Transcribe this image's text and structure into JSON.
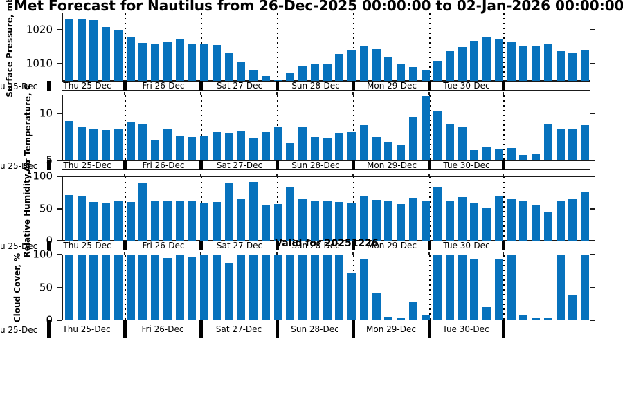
{
  "title": "Met Forecast for Nautilus from 26-Dec-2025 00:00:00 to 02-Jan-2026 00:00:00",
  "annotation": {
    "valid_label": "Valid for 20251226"
  },
  "axis": {
    "clipped_first_day_label": "u 25-Dec",
    "day_labels": [
      "Thu 25-Dec",
      "Fri 26-Dec",
      "Sat 27-Dec",
      "Sun 28-Dec",
      "Mon 29-Dec",
      "Tue 30-Dec"
    ]
  },
  "colors": {
    "bar": "#0772BD",
    "axis": "#1a1a1a",
    "background": "#FFFFFF",
    "text": "#000000"
  },
  "chart_data": [
    {
      "type": "bar",
      "ylabel": "Surface Pressure, mb",
      "yticks": [
        1010,
        1020
      ],
      "ylim": [
        1005,
        1025.2
      ],
      "grid": "vertical-dotted-at-day-boundaries",
      "day_labels": [
        "Thu 25-Dec",
        "Fri 26-Dec",
        "Sat 27-Dec",
        "Sun 28-Dec",
        "Mon 29-Dec",
        "Tue 30-Dec"
      ],
      "values": [
        1023.3,
        1023.4,
        1023.2,
        1021.2,
        1020.1,
        1018.2,
        1016.5,
        1016.0,
        1016.9,
        1017.7,
        1016.3,
        1016.1,
        1015.8,
        1013.3,
        1010.9,
        1008.4,
        1006.6,
        1005.7,
        1007.6,
        1009.5,
        1010.2,
        1010.4,
        1013.1,
        1014.2,
        1015.5,
        1014.5,
        1012.2,
        1010.4,
        1009.2,
        1008.5,
        1011.1,
        1014.0,
        1015.2,
        1017.0,
        1018.2,
        1017.4,
        1016.8,
        1015.7,
        1015.5,
        1016.1,
        1013.9,
        1013.3,
        1014.4
      ]
    },
    {
      "type": "bar",
      "ylabel": "Air Temperature, C",
      "yticks": [
        5,
        10
      ],
      "ylim": [
        5,
        12
      ],
      "grid": "vertical-dotted-at-day-boundaries",
      "day_labels": [
        "Thu 25-Dec",
        "Fri 26-Dec",
        "Sat 27-Dec",
        "Sun 28-Dec",
        "Mon 29-Dec",
        "Tue 30-Dec"
      ],
      "values": [
        9.3,
        8.7,
        8.4,
        8.3,
        8.5,
        9.2,
        9.0,
        7.3,
        8.4,
        7.7,
        7.6,
        7.7,
        8.1,
        8.0,
        8.2,
        7.4,
        8.1,
        8.6,
        6.9,
        8.6,
        7.6,
        7.5,
        8.0,
        8.1,
        8.8,
        7.6,
        7.0,
        6.8,
        9.7,
        11.9,
        10.4,
        8.9,
        8.7,
        6.2,
        6.5,
        6.3,
        6.4,
        5.7,
        5.8,
        8.9,
        8.5,
        8.4,
        8.8
      ]
    },
    {
      "type": "bar",
      "ylabel": "Relative Humidity, %",
      "yticks": [
        0,
        50,
        100
      ],
      "ylim": [
        0,
        100
      ],
      "grid": "vertical-dotted-at-day-boundaries",
      "day_labels": [
        "Thu 25-Dec",
        "Fri 26-Dec",
        "Sat 27-Dec",
        "Sun 28-Dec",
        "Mon 29-Dec",
        "Tue 30-Dec"
      ],
      "values": [
        72,
        70,
        61,
        59,
        63,
        61,
        90,
        63,
        62,
        64,
        62,
        60,
        61,
        90,
        66,
        93,
        57,
        58,
        85,
        66,
        63,
        63,
        61,
        60,
        70,
        65,
        62,
        58,
        68,
        63,
        84,
        64,
        69,
        59,
        53,
        71,
        66,
        62,
        56,
        46,
        62,
        66,
        78
      ]
    },
    {
      "type": "bar",
      "ylabel": "Cloud Cover, %",
      "yticks": [
        0,
        50,
        100
      ],
      "ylim": [
        0,
        100
      ],
      "grid": "vertical-dotted-at-day-boundaries",
      "day_labels": [
        "Thu 25-Dec",
        "Fri 26-Dec",
        "Sat 27-Dec",
        "Sun 28-Dec",
        "Mon 29-Dec",
        "Tue 30-Dec"
      ],
      "values": [
        100,
        100,
        100,
        100,
        100,
        100,
        100,
        100,
        96,
        100,
        97,
        100,
        100,
        88,
        100,
        100,
        100,
        100,
        100,
        100,
        100,
        100,
        100,
        73,
        95,
        43,
        5,
        4,
        30,
        9,
        100,
        100,
        100,
        95,
        21,
        95,
        100,
        10,
        4,
        4,
        100,
        40,
        100
      ]
    }
  ]
}
